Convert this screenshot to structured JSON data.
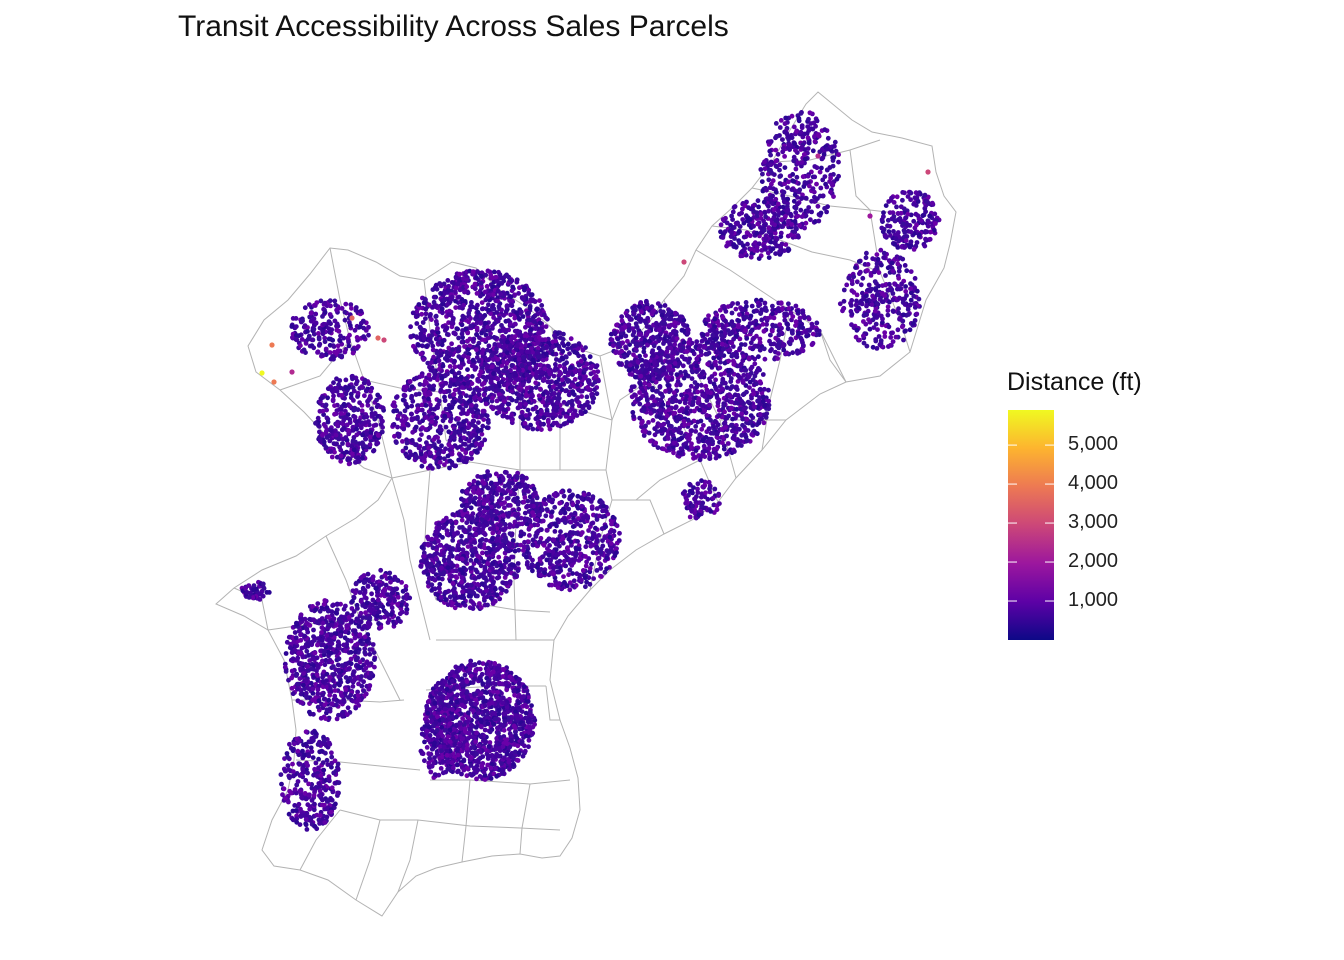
{
  "title": "Transit Accessibility Across Sales Parcels",
  "legend": {
    "title": "Distance (ft)",
    "min": 0,
    "max": 5900,
    "ticks": [
      {
        "value": 1000,
        "label": "1,000"
      },
      {
        "value": 2000,
        "label": "2,000"
      },
      {
        "value": 3000,
        "label": "3,000"
      },
      {
        "value": 4000,
        "label": "4,000"
      },
      {
        "value": 5000,
        "label": "5,000"
      }
    ],
    "colors": [
      "#0d0887",
      "#5d01a6",
      "#9c179e",
      "#cc4778",
      "#ed7953",
      "#fdb42f",
      "#f0f921"
    ]
  },
  "map": {
    "boundary_color": "#b3b3b3",
    "point_color_dominant": "#3a0b9a"
  }
}
